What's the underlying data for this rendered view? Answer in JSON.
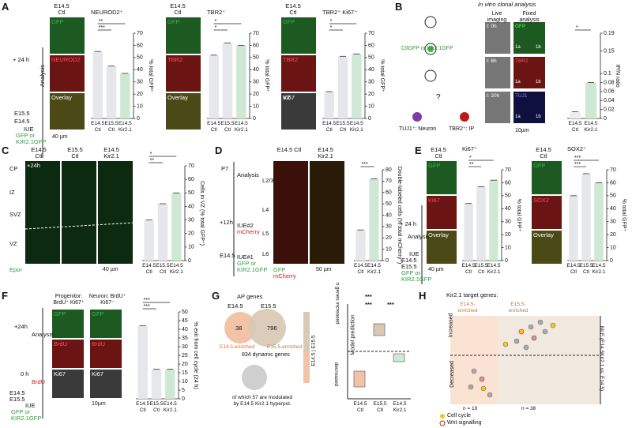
{
  "panels": {
    "a": {
      "label": "A",
      "col": "E14.5 Ctl",
      "ch1": [
        "GFP",
        "NEUROD2",
        "Overlay"
      ],
      "ch2": [
        "GFP",
        "TBR2",
        "Overlay"
      ],
      "ch3": [
        "GFP",
        "TBR2",
        "Ki67"
      ],
      "vz": "VZ",
      "time": "+ 24 h",
      "analysis": "Analysis",
      "e145": "E14.5",
      "e155": "E15.5",
      "iue": "IUE",
      "gfp_or": "GFP or",
      "kir": "KIR2.1GFP",
      "scale": "40 µm"
    },
    "b": {
      "label": "B",
      "title": "In vitro clonal analysis",
      "live": "Live imaging",
      "fixed": "Fixed analysis",
      "t0": "t: 0h",
      "t8": "t: 8h",
      "t20": "t: 20h",
      "ctl": "CtlGFP or Kir2.1GFP",
      "q": "?",
      "neuron": "TUJ1⁺: Neuron",
      "ip": "TBR2⁺: IP",
      "ch": [
        "GFP",
        "TBR2",
        "TUJ1"
      ],
      "a1": "1a",
      "b1": "1b",
      "scale": "10µm"
    },
    "c": {
      "label": "C",
      "cols": [
        "E14.5 Ctl",
        "E15.5 Ctl",
        "E14.5 Kir2.1"
      ],
      "time": "+24h",
      "zones": [
        "CP",
        "IZ",
        "SVZ",
        "VZ"
      ],
      "marker": "Epor",
      "scale": "40 µm"
    },
    "d": {
      "label": "D",
      "p7": "P7",
      "analysis": "Analysis",
      "h12": "+12h",
      "iue2": "IUE#2",
      "mcherry": "mCherry",
      "e145": "E14.5",
      "iue1": "IUE#1",
      "gfp_or": "GFP or",
      "kir": "KIR2.1GFP",
      "cols": [
        "E14.5 Ctl",
        "E14.5 Kir2.1"
      ],
      "layers": [
        "L2/3",
        "L4",
        "L5",
        "L6"
      ],
      "gfp": "GFP",
      "scale": "50 µm"
    },
    "e": {
      "label": "E",
      "col": "E14.5 Ctl",
      "ch1": [
        "GFP",
        "Ki67",
        "Overlay"
      ],
      "ch2": [
        "GFP",
        "SOX2",
        "Overlay"
      ],
      "time": "+ 24 h",
      "analysis": "Analysis",
      "iue": "IUE",
      "e145": "E14.5",
      "e155": "E15.5",
      "gfp_or": "GFP or",
      "kir": "KIR2.1GFP",
      "scale": "40 µm"
    },
    "f": {
      "label": "F",
      "prog": "Progenitor: BrdU⁺ Ki67⁺",
      "neuron": "Neuron: BrdU⁺ Ki67⁻",
      "ch": [
        "GFP",
        "BrdU",
        "Ki67"
      ],
      "time": "+24h",
      "analysis": "Analysis",
      "h0": "0 h",
      "brdu": "BrdU",
      "e145": "E14.5",
      "e155": "E15.5",
      "iue": "IUE",
      "gfp_or": "GFP or",
      "kir": "KIR2.1GFP",
      "scale": "10µm"
    },
    "g": {
      "label": "G",
      "ap": "AP genes",
      "e145": "E14.5",
      "e155": "E15.5",
      "n1": "38",
      "n2": "796",
      "enr1": "E14.5-enriched",
      "enr2": "E15.5-enriched",
      "dyn": "834 dynamic genes",
      "of": "of which 57 are modulated by E14.5 Kir2.1 hyperpol.",
      "bar": "E14.5 | E15.5",
      "inc": "n genes increased",
      "dec": "decreased",
      "model": "Model prediction",
      "cats": [
        "E14.5 Ctl",
        "E15.5 Ctl",
        "E14.5 Kir2.1"
      ],
      "stars": [
        "***",
        "***",
        "***"
      ]
    },
    "h": {
      "label": "H",
      "title": "Kir2.1 target genes:",
      "enr1": "E14.5-enriched",
      "enr2": "E15.5-enriched",
      "inc": "Increased",
      "dec": "Decreased",
      "mle": "MLE (E14.5Kir2.1 vs. E14.5)",
      "n1": "n = 19",
      "n2": "n = 38",
      "cc": "Cell cycle",
      "wnt": "Wnt signalling"
    }
  },
  "chart_data": [
    {
      "type": "bar",
      "title": "NEUROD2⁺",
      "categories": [
        "E14.5 Ctl",
        "E15.5 Ctl",
        "E14.5 Kir2.1"
      ],
      "values": [
        55,
        43,
        37
      ],
      "colors": [
        "#e6e7ea",
        "#e6e7ea",
        "#cfe8d6"
      ],
      "ylim": [
        0,
        70
      ],
      "yticks": [
        0,
        10,
        20,
        30,
        40,
        50,
        60,
        70
      ],
      "y_label": "% total GFP⁺",
      "annotations": [
        "***",
        "**"
      ]
    },
    {
      "type": "bar",
      "title": "TBR2⁺",
      "categories": [
        "E14.5 Ctl",
        "E15.5 Ctl",
        "E14.5 Kir2.1"
      ],
      "values": [
        52,
        62,
        60
      ],
      "colors": [
        "#e6e7ea",
        "#e6e7ea",
        "#cfe8d6"
      ],
      "ylim": [
        0,
        70
      ],
      "yticks": [
        0,
        10,
        20,
        30,
        40,
        50,
        60,
        70
      ],
      "y_label": "% total GFP⁺",
      "annotations": [
        "*",
        "*"
      ]
    },
    {
      "type": "bar",
      "title": "TBR2⁺ Ki67⁺",
      "categories": [
        "E14.5 Ctl",
        "E15.5 Ctl",
        "E14.5 Kir2.1"
      ],
      "values": [
        22,
        51,
        53
      ],
      "colors": [
        "#e6e7ea",
        "#e6e7ea",
        "#cfe8d6"
      ],
      "ylim": [
        0,
        70
      ],
      "yticks": [
        0,
        10,
        20,
        30,
        40,
        50,
        60,
        70
      ],
      "y_label": "% total GFP⁺",
      "annotations": [
        "*",
        "*"
      ]
    },
    {
      "type": "bar",
      "title": "",
      "categories": [
        "E14.5 Ctl",
        "E14.5 Kir2.1"
      ],
      "values": [
        0.015,
        0.08
      ],
      "colors": [
        "#eeeeee",
        "#cfe8d6"
      ],
      "ylim": [
        0,
        0.19
      ],
      "yticks": [
        0,
        0.02,
        0.04,
        0.06,
        0.08,
        0.1,
        0.15,
        0.19
      ],
      "y_label": "IP/N ratio",
      "annotations": [
        "*"
      ]
    },
    {
      "type": "bar",
      "title": "",
      "categories": [
        "E14.5 Ctl",
        "E15.5 Ctl",
        "E14.5 Kir2.1"
      ],
      "values": [
        30,
        42,
        50
      ],
      "colors": [
        "#e6e7ea",
        "#e6e7ea",
        "#cfe8d6"
      ],
      "ylim": [
        0,
        70
      ],
      "yticks": [
        0,
        10,
        20,
        30,
        40,
        50,
        60,
        70
      ],
      "y_label": "Cells in VZ (% total GFP⁺)",
      "annotations": [
        "**",
        "*"
      ]
    },
    {
      "type": "bar",
      "title": "",
      "categories": [
        "E14.5 Ctl",
        "E14.5 Kir2.1"
      ],
      "values": [
        27,
        72
      ],
      "colors": [
        "#e6e7ea",
        "#cfe8d6"
      ],
      "ylim": [
        0,
        80
      ],
      "yticks": [
        0,
        10,
        20,
        30,
        40,
        50,
        60,
        70,
        80
      ],
      "y_label": "Double-labeled cells (% total mCherry⁺)",
      "annotations": [
        "***"
      ]
    },
    {
      "type": "bar",
      "title": "Ki67⁺",
      "categories": [
        "E14.5 Ctl",
        "E15.5 Ctl",
        "E14.5 Kir2.1"
      ],
      "values": [
        44,
        57,
        62
      ],
      "colors": [
        "#e6e7ea",
        "#e6e7ea",
        "#cfe8d6"
      ],
      "ylim": [
        0,
        70
      ],
      "yticks": [
        0,
        10,
        20,
        30,
        40,
        50,
        60,
        70
      ],
      "y_label": "% total GFP⁺",
      "annotations": [
        "**",
        "*"
      ]
    },
    {
      "type": "bar",
      "title": "SOX2⁺",
      "categories": [
        "E14.5 Ctl",
        "E15.5 Ctl",
        "E14.5 Kir2.1"
      ],
      "values": [
        50,
        67,
        60
      ],
      "colors": [
        "#e6e7ea",
        "#e6e7ea",
        "#cfe8d6"
      ],
      "ylim": [
        0,
        70
      ],
      "yticks": [
        0,
        10,
        20,
        30,
        40,
        50,
        60,
        70
      ],
      "y_label": "% total GFP⁺",
      "annotations": [
        "***",
        "***"
      ]
    },
    {
      "type": "bar",
      "title": "",
      "categories": [
        "E14.5 Ctl",
        "E15.5 Ctl",
        "E14.5 Kir2.1"
      ],
      "values": [
        42,
        17,
        17
      ],
      "colors": [
        "#e6e7ea",
        "#e6e7ea",
        "#cfe8d6"
      ],
      "ylim": [
        0,
        50
      ],
      "yticks": [
        0,
        5,
        10,
        15,
        20,
        25,
        30,
        35,
        40,
        45,
        50
      ],
      "y_label": "% exit from cell cycle (24 h)",
      "annotations": [
        "***",
        "***"
      ]
    }
  ]
}
